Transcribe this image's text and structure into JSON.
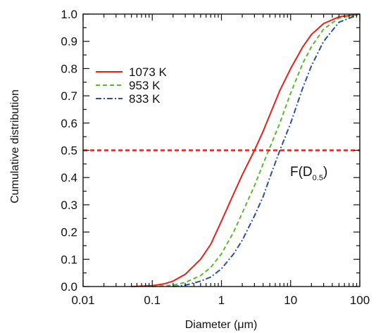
{
  "chart_data": {
    "type": "line",
    "title": "",
    "xlabel": "Diameter (μm)",
    "ylabel": "Cumulative distribution",
    "x_scale": "log",
    "xlim": [
      0.01,
      100
    ],
    "ylim": [
      0,
      1.0
    ],
    "x_ticks": [
      "0.01",
      "0.1",
      "1",
      "10",
      "100"
    ],
    "y_ticks": [
      "0.0",
      "0.1",
      "0.2",
      "0.3",
      "0.4",
      "0.5",
      "0.6",
      "0.7",
      "0.8",
      "0.9",
      "1.0"
    ],
    "grid": false,
    "legend_position": "upper-left",
    "series": [
      {
        "name": "1073 K",
        "color": "#e8201c",
        "style": "solid",
        "x": [
          0.05,
          0.1,
          0.15,
          0.2,
          0.3,
          0.5,
          0.7,
          1.0,
          1.5,
          2.0,
          3.0,
          4.0,
          5.0,
          7.0,
          10,
          15,
          20,
          30,
          50,
          100
        ],
        "y": [
          0.0,
          0.003,
          0.01,
          0.02,
          0.045,
          0.1,
          0.155,
          0.24,
          0.34,
          0.41,
          0.5,
          0.57,
          0.63,
          0.72,
          0.8,
          0.88,
          0.925,
          0.965,
          0.99,
          1.0
        ]
      },
      {
        "name": "953 K",
        "color": "#5cb82e",
        "style": "dashed",
        "x": [
          0.1,
          0.2,
          0.3,
          0.5,
          0.7,
          1.0,
          1.5,
          2.0,
          3.0,
          4.0,
          5.0,
          7.0,
          10,
          15,
          20,
          30,
          50,
          100
        ],
        "y": [
          0.0,
          0.005,
          0.015,
          0.04,
          0.07,
          0.12,
          0.2,
          0.27,
          0.37,
          0.45,
          0.51,
          0.6,
          0.71,
          0.82,
          0.88,
          0.945,
          0.985,
          1.0
        ]
      },
      {
        "name": "833 K",
        "color": "#2b4ea8",
        "style": "dash-dot",
        "x": [
          0.2,
          0.3,
          0.5,
          0.7,
          1.0,
          1.5,
          2.0,
          3.0,
          4.0,
          5.0,
          7.0,
          10,
          15,
          20,
          30,
          50,
          100
        ],
        "y": [
          0.0,
          0.005,
          0.02,
          0.035,
          0.065,
          0.12,
          0.17,
          0.26,
          0.33,
          0.4,
          0.5,
          0.6,
          0.73,
          0.81,
          0.9,
          0.97,
          1.0
        ]
      }
    ],
    "reference_line": {
      "y": 0.5,
      "color": "#e8201c",
      "style": "dashed",
      "label_main": "F(D",
      "label_sub": "0.5",
      "label_close": ")"
    }
  }
}
